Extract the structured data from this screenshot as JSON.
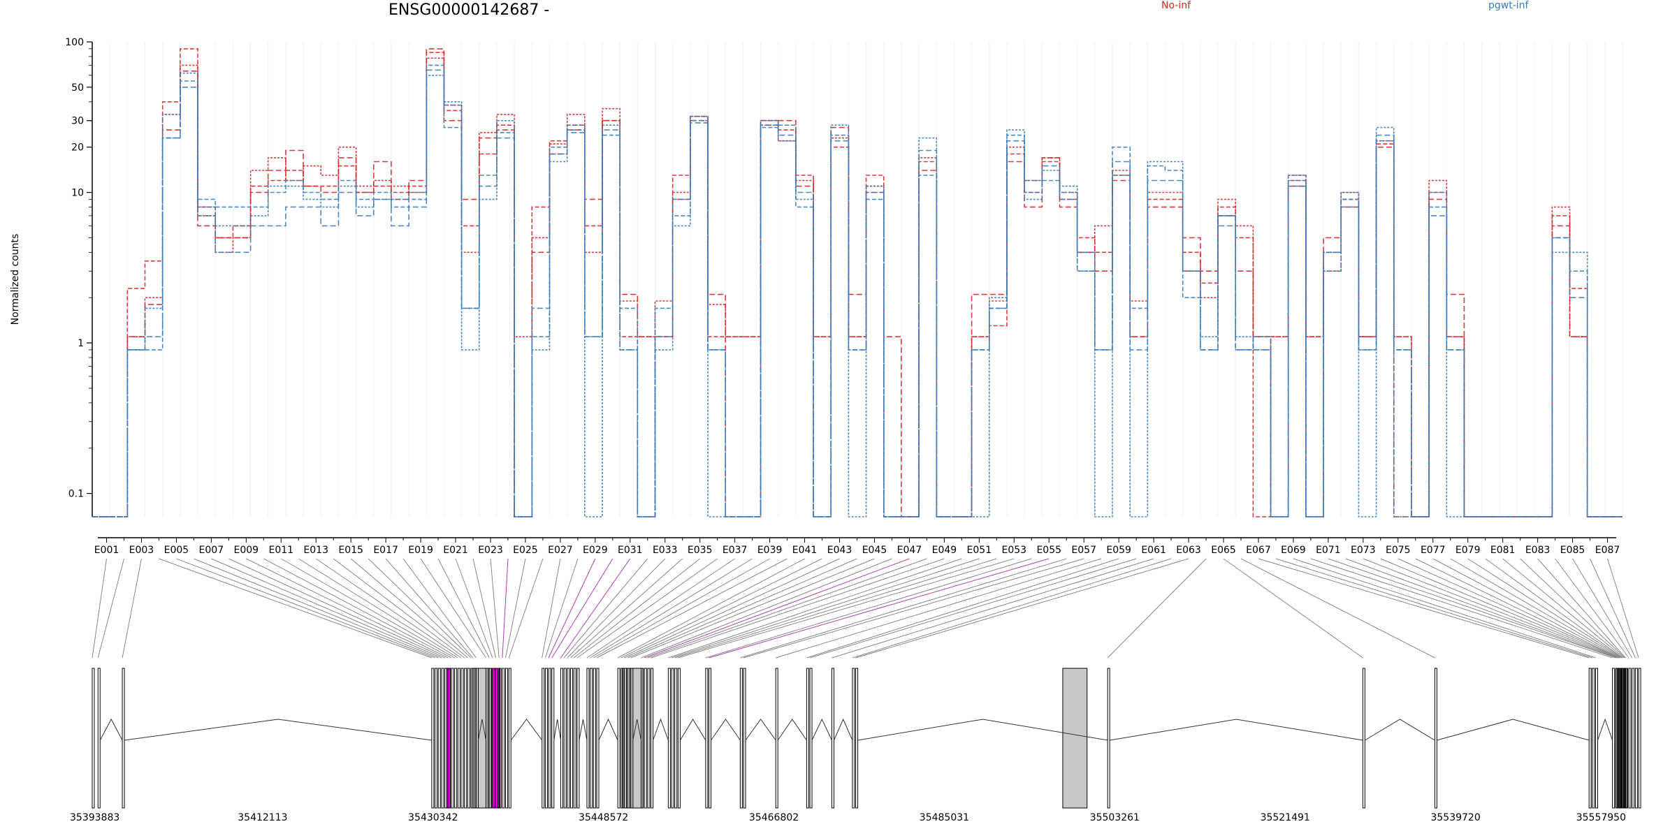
{
  "chart_data": {
    "type": "line",
    "title": "ENSG00000142687 -",
    "ylabel": "Normalized counts",
    "xlabel": "",
    "y_scale": "log",
    "ylim": [
      0.07,
      100
    ],
    "y_ticks": [
      "100",
      "50",
      "30",
      "20",
      "10",
      "1",
      "0.1"
    ],
    "y_tick_values": [
      100,
      50,
      30,
      20,
      10,
      1,
      0.1
    ],
    "legend": [
      {
        "name": "No-inf",
        "color": "#d62728"
      },
      {
        "name": "pgwt-inf",
        "color": "#3a7dbd"
      }
    ],
    "exon_tick_labels": [
      "E001",
      "E003",
      "E005",
      "E007",
      "E009",
      "E011",
      "E013",
      "E015",
      "E017",
      "E019",
      "E021",
      "E023",
      "E025",
      "E027",
      "E029",
      "E031",
      "E033",
      "E035",
      "E037",
      "E039",
      "E041",
      "E043",
      "E045",
      "E047",
      "E049",
      "E051",
      "E053",
      "E055",
      "E057",
      "E059",
      "E061",
      "E063",
      "E065",
      "E067",
      "E069",
      "E071",
      "E073",
      "E075",
      "E077",
      "E079",
      "E081",
      "E083",
      "E085",
      "E087"
    ],
    "exon_count": 87,
    "series": [
      {
        "name": "No-inf",
        "color": "#d62728",
        "values": [
          0.07,
          0.07,
          2.3,
          3.5,
          40,
          90,
          8,
          5,
          6,
          11,
          12,
          14,
          11,
          11,
          15,
          10,
          11,
          10,
          11,
          85,
          35,
          6,
          18,
          28,
          0.07,
          8,
          22,
          28,
          6,
          30,
          1.1,
          0.07,
          1.1,
          13,
          32,
          1.1,
          1.1,
          1.1,
          30,
          26,
          13,
          1.1,
          20,
          1.1,
          13,
          0.07,
          0.07,
          16,
          0.07,
          0.07,
          1.1,
          1.3,
          18,
          10,
          16,
          9,
          5,
          4,
          13,
          1.1,
          9,
          9,
          4,
          2.5,
          8,
          5,
          0.07,
          1.1,
          12,
          1.1,
          4,
          9,
          1.1,
          21,
          1.1,
          0.07,
          10,
          1.1,
          0.07,
          0.07,
          0.07,
          0.07,
          0.07,
          7,
          2.3,
          0.07,
          0.07
        ]
      },
      {
        "name": "No-inf",
        "color": "#d62728",
        "values": [
          0.07,
          0.07,
          1.1,
          2,
          33,
          70,
          7,
          4,
          5,
          14,
          17,
          12,
          15,
          13,
          20,
          11,
          12,
          11,
          10,
          78,
          38,
          4,
          25,
          33,
          1.1,
          5,
          21,
          33,
          4,
          36,
          1.9,
          1.1,
          1.9,
          10,
          32,
          1.8,
          1.1,
          1.1,
          30,
          22,
          12,
          1.1,
          23,
          1.1,
          11,
          0.07,
          0.07,
          17,
          0.07,
          0.07,
          1.1,
          1.9,
          20,
          12,
          17,
          10,
          4,
          6,
          14,
          1.9,
          10,
          10,
          3,
          2,
          9,
          6,
          1.1,
          1.1,
          13,
          1.1,
          3,
          10,
          1.1,
          22,
          1.1,
          0.07,
          12,
          1.1,
          0.07,
          0.07,
          0.07,
          0.07,
          0.07,
          8,
          1.1,
          0.07,
          0.07
        ]
      },
      {
        "name": "No-inf",
        "color": "#d62728",
        "values": [
          0.07,
          0.07,
          1.1,
          1.8,
          26,
          64,
          6,
          5,
          5,
          10,
          14,
          19,
          11,
          10,
          17,
          10,
          16,
          9,
          12,
          90,
          30,
          9,
          23,
          26,
          0.07,
          4,
          18,
          26,
          9,
          30,
          2.1,
          1.1,
          1.1,
          9,
          30,
          2.1,
          0.07,
          0.07,
          28,
          30,
          11,
          0.07,
          27,
          2.1,
          10,
          1.1,
          0.07,
          14,
          0.07,
          0.07,
          2.1,
          2.1,
          16,
          8,
          17,
          8,
          4,
          3,
          12,
          1.1,
          8,
          8,
          5,
          3,
          7,
          3,
          1.1,
          0.07,
          11,
          0.07,
          5,
          8,
          1.1,
          20,
          0.07,
          0.07,
          9,
          2.1,
          0.07,
          0.07,
          0.07,
          0.07,
          0.07,
          6,
          1.1,
          0.07,
          0.07
        ]
      },
      {
        "name": "pgwt-inf",
        "color": "#3a7dbd",
        "values": [
          0.07,
          0.07,
          0.9,
          0.9,
          23,
          55,
          9,
          8,
          8,
          8,
          10,
          12,
          10,
          9,
          12,
          9,
          10,
          8,
          9,
          70,
          27,
          1.7,
          13,
          25,
          0.07,
          1.1,
          20,
          26,
          1.1,
          24,
          1.7,
          0.07,
          1.7,
          7,
          30,
          0.9,
          0.07,
          0.07,
          27,
          28,
          8,
          0.07,
          24,
          0.9,
          9,
          0.07,
          0.07,
          13,
          0.07,
          0.07,
          0.9,
          1.7,
          24,
          10,
          12,
          10,
          3,
          0.9,
          20,
          1.7,
          15,
          14,
          2,
          0.9,
          7,
          0.9,
          1.1,
          0.07,
          13,
          0.07,
          3,
          9,
          0.9,
          22,
          0.9,
          0.07,
          8,
          0.9,
          0.07,
          0.07,
          0.07,
          0.07,
          0.07,
          5,
          3,
          0.07,
          0.07
        ]
      },
      {
        "name": "pgwt-inf",
        "color": "#3a7dbd",
        "values": [
          0.07,
          0.07,
          0.9,
          1.7,
          33,
          62,
          8,
          6,
          6,
          7,
          11,
          11,
          9,
          8,
          11,
          8,
          9,
          9,
          10,
          60,
          40,
          0.9,
          9,
          30,
          0.07,
          0.9,
          16,
          28,
          0.07,
          28,
          0.9,
          0.07,
          0.9,
          6,
          32,
          0.07,
          0.07,
          0.07,
          30,
          22,
          9,
          0.07,
          28,
          0.07,
          11,
          0.07,
          0.07,
          23,
          0.07,
          0.07,
          0.07,
          2,
          26,
          9,
          14,
          11,
          3,
          0.07,
          13,
          0.07,
          16,
          16,
          3,
          1.1,
          7,
          1.1,
          0.9,
          0.07,
          12,
          0.07,
          4,
          10,
          0.07,
          27,
          0.07,
          0.07,
          10,
          0.07,
          0.07,
          0.07,
          0.07,
          0.07,
          0.07,
          4,
          4,
          0.07,
          0.07
        ]
      },
      {
        "name": "pgwt-inf",
        "color": "#3a7dbd",
        "values": [
          0.07,
          0.07,
          0.9,
          1.1,
          23,
          50,
          7,
          4,
          4,
          6,
          6,
          8,
          8,
          6,
          10,
          7,
          9,
          6,
          8,
          65,
          38,
          1.7,
          11,
          23,
          0.07,
          1.7,
          18,
          25,
          1.1,
          26,
          0.9,
          0.07,
          1.1,
          9,
          29,
          0.9,
          0.07,
          0.07,
          28,
          24,
          10,
          0.07,
          22,
          0.9,
          10,
          0.07,
          0.07,
          19,
          0.07,
          0.07,
          0.9,
          1.7,
          22,
          12,
          15,
          9,
          4,
          0.9,
          16,
          0.9,
          12,
          12,
          3,
          0.9,
          6,
          0.9,
          0.9,
          0.07,
          11,
          0.07,
          4,
          8,
          0.9,
          24,
          0.9,
          0.07,
          7,
          0.9,
          0.07,
          0.07,
          0.07,
          0.07,
          0.07,
          5,
          2,
          0.07,
          0.07
        ]
      }
    ],
    "genomic_axis_labels": [
      "35393883",
      "35412113",
      "35430342",
      "35448572",
      "35466802",
      "35485031",
      "35503261",
      "35521491",
      "35539720",
      "35557950"
    ]
  }
}
